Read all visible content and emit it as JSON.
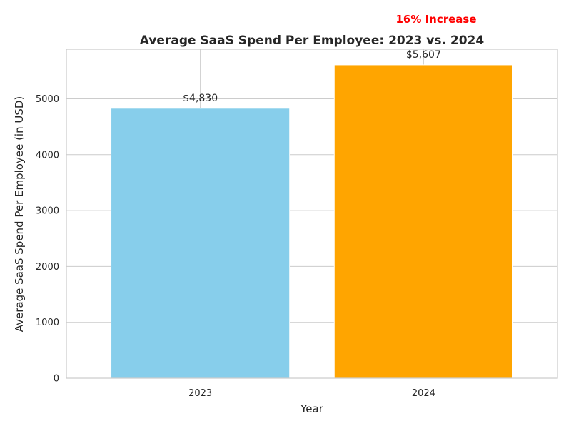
{
  "chart_data": {
    "type": "bar",
    "title": "Average SaaS Spend Per Employee: 2023 vs. 2024",
    "xlabel": "Year",
    "ylabel": "Average SaaS Spend Per Employee (in USD)",
    "categories": [
      "2023",
      "2024"
    ],
    "values": [
      4830,
      5607
    ],
    "data_labels": [
      "$4,830",
      "$5,607"
    ],
    "colors": [
      "#87CEEB",
      "#FFA500"
    ],
    "ylim": [
      0,
      5887
    ],
    "yticks": [
      0,
      1000,
      2000,
      3000,
      4000,
      5000
    ],
    "grid": true,
    "annotation": {
      "text": "16% Increase",
      "color": "#FF0000"
    }
  }
}
